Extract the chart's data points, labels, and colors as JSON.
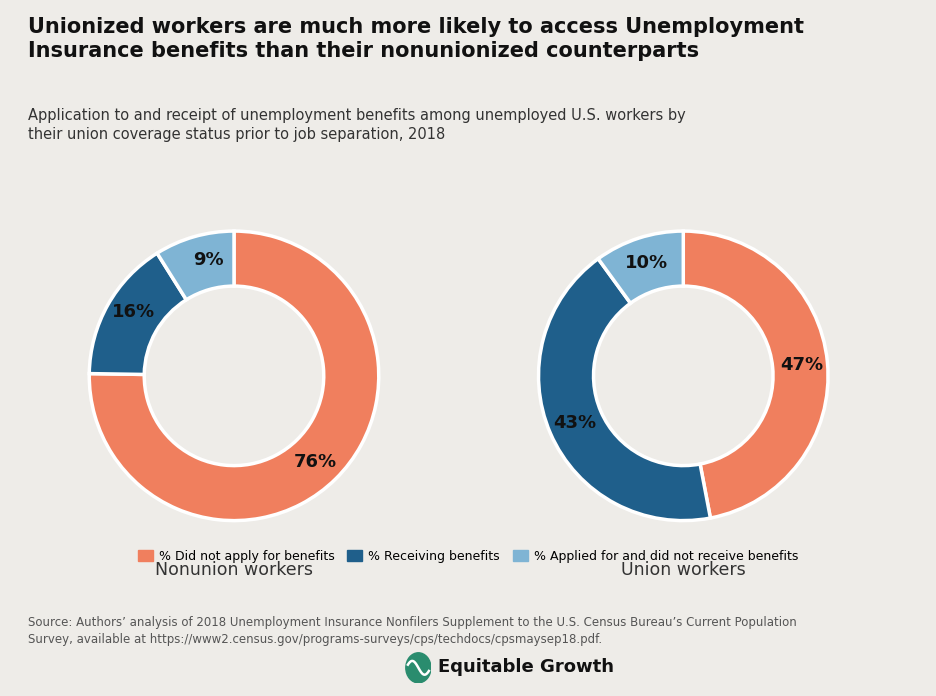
{
  "title": "Unionized workers are much more likely to access Unemployment\nInsurance benefits than their nonunionized counterparts",
  "subtitle": "Application to and receipt of unemployment benefits among unemployed U.S. workers by\ntheir union coverage status prior to job separation, 2018",
  "background_color": "#eeece8",
  "nonunion": {
    "label": "Nonunion workers",
    "values": [
      76,
      16,
      9
    ],
    "pct_labels": [
      "76%",
      "16%",
      "9%"
    ],
    "label_angles_deg": [
      0,
      195,
      155
    ]
  },
  "union": {
    "label": "Union workers",
    "values": [
      47,
      43,
      10
    ],
    "pct_labels": [
      "47%",
      "43%",
      "10%"
    ],
    "label_angles_deg": [
      0,
      200,
      152
    ]
  },
  "colors": [
    "#f07f5e",
    "#1f5f8b",
    "#7fb4d4"
  ],
  "legend_labels": [
    "% Did not apply for benefits",
    "% Receiving benefits",
    "% Applied for and did not receive benefits"
  ],
  "source_text": "Source: Authors’ analysis of 2018 Unemployment Insurance Nonfilers Supplement to the U.S. Census Bureau’s Current Population\nSurvey, available at https://www2.census.gov/programs-surveys/cps/techdocs/cpsmaysep18.pdf.",
  "donut_width": 0.38
}
